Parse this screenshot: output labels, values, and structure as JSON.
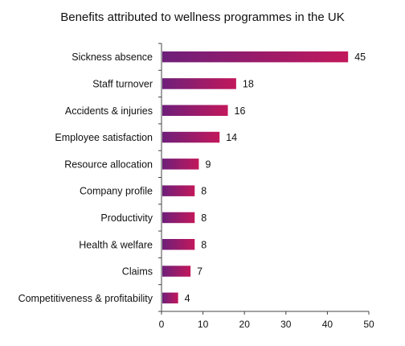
{
  "chart_data": {
    "type": "bar",
    "orientation": "horizontal",
    "title": "Benefits attributed to wellness programmes in the UK",
    "xlabel": "",
    "ylabel": "",
    "categories": [
      "Sickness absence",
      "Staff turnover",
      "Accidents & injuries",
      "Employee satisfaction",
      "Resource allocation",
      "Company profile",
      "Productivity",
      "Health & welfare",
      "Claims",
      "Competitiveness & profitability"
    ],
    "values": [
      45,
      18,
      16,
      14,
      9,
      8,
      8,
      8,
      7,
      4
    ],
    "xlim": [
      0,
      50
    ],
    "xticks": [
      0,
      10,
      20,
      30,
      40,
      50
    ],
    "grid": false,
    "legend": "none",
    "bar_gradient": [
      "#6e1f7a",
      "#c2185b"
    ]
  }
}
